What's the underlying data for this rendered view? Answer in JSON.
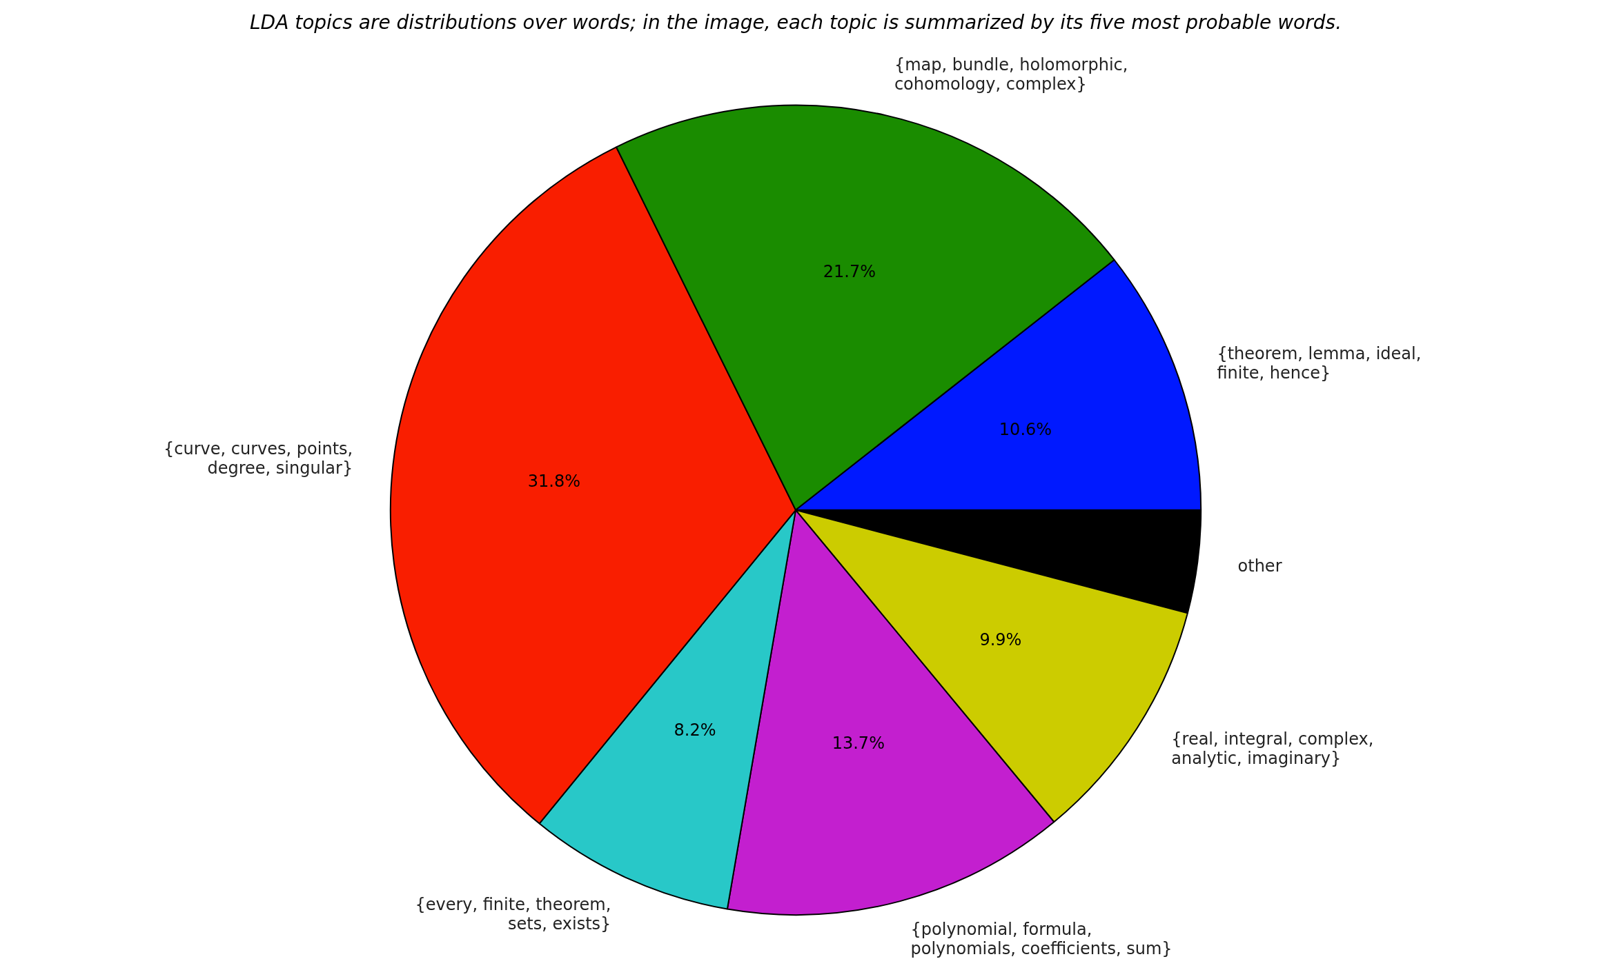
{
  "chart_data": {
    "type": "pie",
    "title": "LDA topics are distributions over words; in the image, each topic is summarized by its five most probable words.",
    "categories": [
      "other",
      "{real, integral, complex, analytic, imaginary}",
      "{polynomial, formula, polynomials, coefficients, sum}",
      "{every, finite, theorem, sets, exists}",
      "{curve, curves, points, degree, singular}",
      "{map, bundle, holomorphic, cohomology, complex}",
      "{theorem, lemma, ideal, finite, hence}"
    ],
    "values": [
      4.1,
      9.9,
      13.7,
      8.2,
      31.8,
      21.7,
      10.6
    ],
    "colors": [
      "#000000",
      "#cccc00",
      "#c31fcf",
      "#28c8c8",
      "#f91e00",
      "#1a8c00",
      "#0019ff"
    ],
    "value_labels": [
      null,
      "9.9%",
      "13.7%",
      "8.2%",
      "31.8%",
      "21.7%",
      "10.6%"
    ],
    "legend": false
  }
}
